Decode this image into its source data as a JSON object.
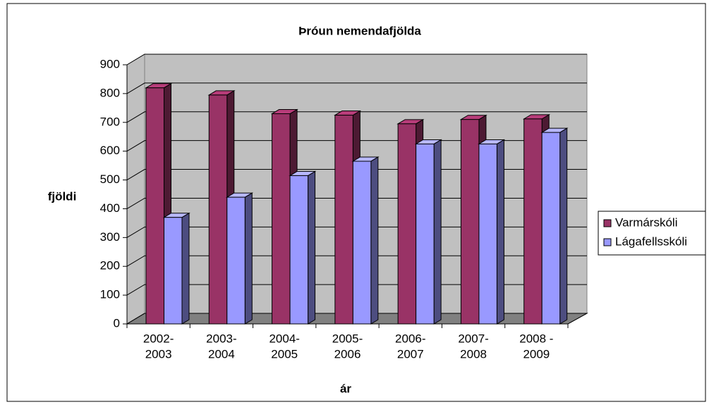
{
  "chart_data": {
    "type": "bar3d",
    "title": "Þróun nemendafjölda",
    "xlabel": "ár",
    "ylabel": "fjöldi",
    "categories": [
      [
        "2002-",
        "2003"
      ],
      [
        "2003-",
        "2004"
      ],
      [
        "2004-",
        "2005"
      ],
      [
        "2005-",
        "2006"
      ],
      [
        "2006-",
        "2007"
      ],
      [
        "2007-",
        "2008"
      ],
      [
        "2008 -",
        "2009"
      ]
    ],
    "series": [
      {
        "name": "Varmárskóli",
        "color": "#993366",
        "values": [
          820,
          795,
          730,
          725,
          695,
          710,
          712
        ]
      },
      {
        "name": "Lágafellsskóli",
        "color": "#9999ff",
        "values": [
          370,
          440,
          515,
          565,
          625,
          625,
          665
        ]
      }
    ],
    "ylim": [
      0,
      900
    ],
    "yticks": [
      0,
      100,
      200,
      300,
      400,
      500,
      600,
      700,
      800,
      900
    ],
    "grid": true,
    "legend": "right"
  }
}
